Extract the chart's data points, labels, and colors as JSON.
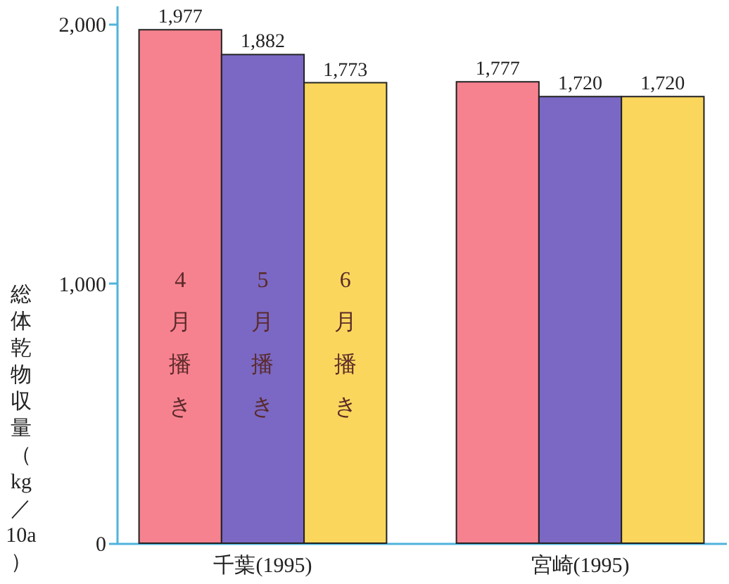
{
  "chart_data": {
    "type": "bar",
    "ylabel": "総体乾物収量（kg／10a）",
    "categories": [
      "千葉(1995)",
      "宮崎(1995)"
    ],
    "series": [
      {
        "name": "4月播き",
        "color": "#f7828f",
        "values": [
          1977,
          1777
        ],
        "value_labels": [
          "1,977",
          "1,777"
        ]
      },
      {
        "name": "5月播き",
        "color": "#7a68c4",
        "values": [
          1882,
          1720
        ],
        "value_labels": [
          "1,882",
          "1,720"
        ]
      },
      {
        "name": "6月播き",
        "color": "#fad75c",
        "values": [
          1773,
          1720
        ],
        "value_labels": [
          "1,773",
          "1,720"
        ]
      }
    ],
    "ylim": [
      0,
      2070
    ],
    "yticks": [
      0,
      {
        "value": 1000,
        "label": "1,000"
      },
      {
        "value": 2000,
        "label": "2,000"
      }
    ],
    "grid": false,
    "legend": false
  }
}
